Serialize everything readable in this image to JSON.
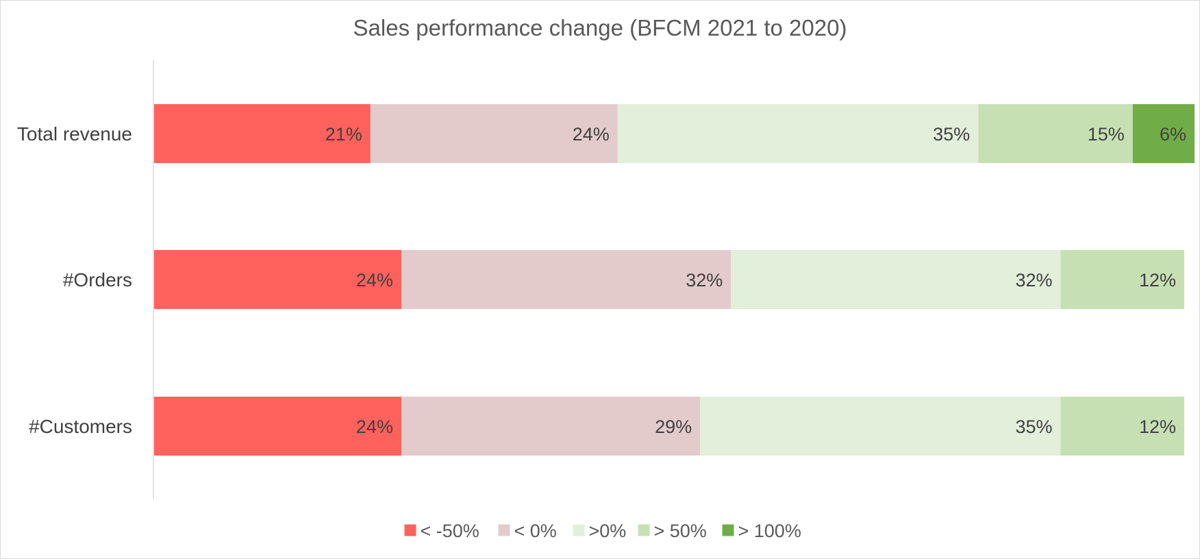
{
  "chart_data": {
    "type": "bar",
    "orientation": "horizontal",
    "stacked": "100%",
    "title": "Sales performance change (BFCM 2021 to 2020)",
    "categories": [
      "Total revenue",
      "#Orders",
      "#Customers"
    ],
    "series": [
      {
        "name": "< -50%",
        "color": "#FF615C",
        "values": [
          21,
          24,
          24
        ],
        "labels": [
          "21%",
          "24%",
          "24%"
        ]
      },
      {
        "name": "< 0%",
        "color": "#E4CBCB",
        "values": [
          24,
          32,
          29
        ],
        "labels": [
          "24%",
          "32%",
          "29%"
        ]
      },
      {
        "name": ">0%",
        "color": "#E2EFDA",
        "values": [
          35,
          32,
          35
        ],
        "labels": [
          "35%",
          "32%",
          "35%"
        ]
      },
      {
        "name": "> 50%",
        "color": "#C6E0B4",
        "values": [
          15,
          12,
          12
        ],
        "labels": [
          "15%",
          "12%",
          "12%"
        ]
      },
      {
        "name": "> 100%",
        "color": "#70AD47",
        "values": [
          6,
          0,
          0
        ],
        "labels": [
          "6%",
          "",
          ""
        ]
      }
    ],
    "xlim": [
      0,
      100
    ],
    "grid": false,
    "legend": "bottom"
  }
}
